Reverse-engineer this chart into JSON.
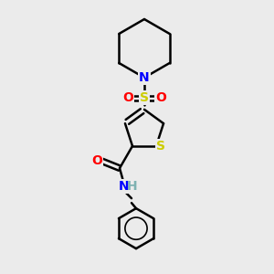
{
  "bg_color": "#ebebeb",
  "atom_colors": {
    "N": "#0000ff",
    "O": "#ff0000",
    "S_sulfonyl": "#cccc00",
    "S_thio": "#cccc00",
    "N_amide": "#0000ff",
    "H": "#7fb2b2"
  },
  "bond_color": "#000000",
  "bond_width": 1.8,
  "font_size_atoms": 10,
  "font_size_H": 10
}
